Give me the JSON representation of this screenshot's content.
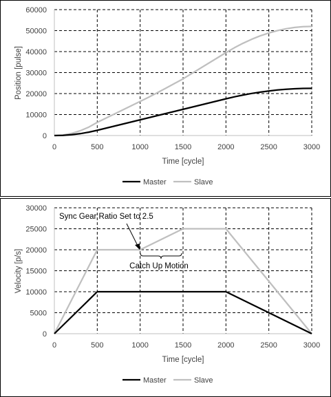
{
  "colors": {
    "master": "#000000",
    "slave": "#bfbfbf",
    "grid": "#000000",
    "border": "#000000",
    "axis": "#bfbfbf",
    "text": "#404040"
  },
  "chart_data": [
    {
      "type": "line",
      "title": "",
      "xlabel": "Time [cycle]",
      "ylabel": "Position [pulse]",
      "xlim": [
        0,
        3000
      ],
      "ylim": [
        0,
        60000
      ],
      "xticks": [
        "0",
        "500",
        "1000",
        "1500",
        "2000",
        "2500",
        "3000"
      ],
      "yticks": [
        "0",
        "10000",
        "20000",
        "30000",
        "40000",
        "50000",
        "60000"
      ],
      "grid": "dashed",
      "legend": "bottom",
      "series": [
        {
          "name": "Master",
          "color_key": "master",
          "x": [
            0,
            100,
            200,
            300,
            400,
            500,
            1000,
            1500,
            2000,
            2100,
            2200,
            2300,
            2400,
            2500,
            2600,
            2700,
            2800,
            2900,
            3000
          ],
          "y": [
            0,
            100,
            400,
            900,
            1600,
            2500,
            7500,
            12500,
            17500,
            18450,
            19300,
            20050,
            20700,
            21250,
            21700,
            22050,
            22300,
            22450,
            22500
          ]
        },
        {
          "name": "Slave",
          "color_key": "slave",
          "x": [
            0,
            100,
            200,
            300,
            400,
            500,
            1000,
            1100,
            1200,
            1300,
            1400,
            1500,
            2000,
            2100,
            2200,
            2300,
            2400,
            2500,
            2600,
            2700,
            2800,
            2900,
            3000
          ],
          "y": [
            0,
            250,
            1000,
            2250,
            4000,
            6250,
            16250,
            18300,
            20400,
            22600,
            24800,
            27000,
            39500,
            41875,
            44000,
            45875,
            47500,
            48875,
            50000,
            50875,
            51500,
            51875,
            52000
          ]
        }
      ]
    },
    {
      "type": "line",
      "title": "",
      "xlabel": "Time [cycle]",
      "ylabel": "Velocity [p/s]",
      "xlim": [
        0,
        3000
      ],
      "ylim": [
        0,
        30000
      ],
      "xticks": [
        "0",
        "500",
        "1000",
        "1500",
        "2000",
        "2500",
        "3000"
      ],
      "yticks": [
        "0",
        "5000",
        "10000",
        "15000",
        "20000",
        "25000",
        "30000"
      ],
      "grid": "dashed",
      "legend": "bottom",
      "annotations": [
        {
          "text": "Sync Gear Ratio Set to 2.5",
          "arrow_to": [
            1000,
            20000
          ]
        },
        {
          "text": "Catch Up Motion",
          "brace_from": 1000,
          "brace_to": 1500,
          "brace_y": 19000
        }
      ],
      "series": [
        {
          "name": "Master",
          "color_key": "master",
          "x": [
            0,
            500,
            2000,
            3000
          ],
          "y": [
            0,
            10000,
            10000,
            0
          ]
        },
        {
          "name": "Slave",
          "color_key": "slave",
          "x": [
            0,
            500,
            1000,
            1500,
            2000,
            3000
          ],
          "y": [
            0,
            20000,
            20000,
            25000,
            25000,
            0
          ]
        }
      ]
    }
  ]
}
